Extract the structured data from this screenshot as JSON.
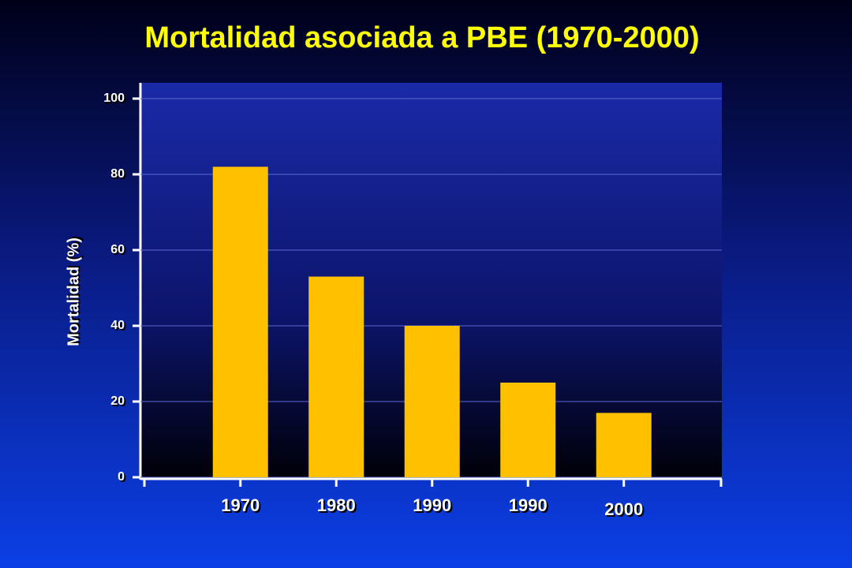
{
  "chart_data": {
    "type": "bar",
    "title": "Mortalidad asociada a PBE (1970-2000)",
    "y_label": "Mortalidad (%)",
    "categories": [
      "1970",
      "1980",
      "1990",
      "1990",
      "2000"
    ],
    "values": [
      82,
      53,
      40,
      25,
      17
    ],
    "color": "#ffc000",
    "ylim": [
      0,
      100
    ],
    "yticks": [
      0,
      20,
      40,
      60,
      80,
      100
    ],
    "grid": true
  }
}
